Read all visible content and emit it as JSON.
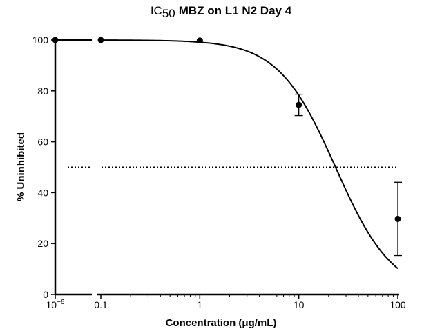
{
  "chart_data": {
    "type": "scatter",
    "title": {
      "prefix": "IC",
      "subscript": "50",
      "rest": "MBZ on L1 N2 Day 4"
    },
    "xlabel": "Concentration (μg/mL)",
    "ylabel": "% Uninhibited",
    "x_scale": "log",
    "x_axis_break": true,
    "xlim": [
      0.1,
      100
    ],
    "ylim": [
      0,
      100
    ],
    "x_ticks": [
      {
        "value": 1e-06,
        "label": "10",
        "sup": "−6",
        "segment": "left"
      },
      {
        "value": 0.1,
        "label": "0.1",
        "segment": "main"
      },
      {
        "value": 1,
        "label": "1",
        "segment": "main"
      },
      {
        "value": 10,
        "label": "10",
        "segment": "main"
      },
      {
        "value": 100,
        "label": "100",
        "segment": "main"
      }
    ],
    "y_ticks": [
      0,
      20,
      40,
      60,
      80,
      100
    ],
    "series": [
      {
        "type": "scatter",
        "points": [
          {
            "x": 1e-06,
            "y": 100,
            "err": 0,
            "segment": "left"
          },
          {
            "x": 0.1,
            "y": 100,
            "err": 0,
            "segment": "main"
          },
          {
            "x": 1,
            "y": 99.8,
            "err": 0.5,
            "segment": "main"
          },
          {
            "x": 10,
            "y": 74.5,
            "err": 4.2,
            "segment": "main"
          },
          {
            "x": 100,
            "y": 29.7,
            "err": 14.4,
            "segment": "main"
          }
        ]
      },
      {
        "type": "curve",
        "model": "four-parameter logistic",
        "top": 100,
        "bottom": 0,
        "ic50": 23.5,
        "hill": 1.5,
        "x_range": [
          1e-06,
          100
        ]
      }
    ],
    "reference_line": {
      "y": 50,
      "style": "dotted"
    },
    "grid": false,
    "legend": "none"
  }
}
